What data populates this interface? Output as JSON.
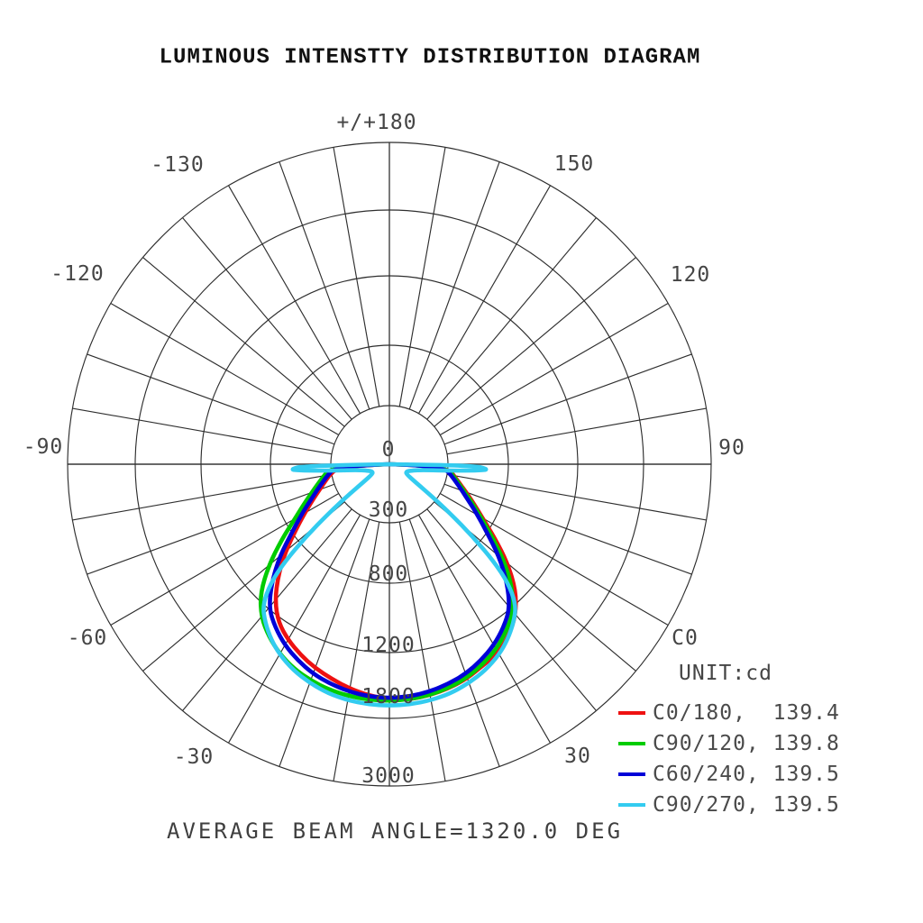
{
  "title": "LUMINOUS INTENSTTY DISTRIBUTION DIAGRAM",
  "footer": "AVERAGE BEAM ANGLE=1320.0 DEG",
  "legend": {
    "unit": "UNIT:cd",
    "entries": [
      {
        "label": "C0/180,  139.4",
        "color": "#ee1111"
      },
      {
        "label": "C90/120, 139.8",
        "color": "#00cc00"
      },
      {
        "label": "C60/240, 139.5",
        "color": "#0000d8"
      },
      {
        "label": "C90/270, 139.5",
        "color": "#33ccf0"
      }
    ]
  },
  "chart_data": {
    "type": "line",
    "subtype": "polar-intensity-distribution",
    "units": "cd",
    "grid": true,
    "r_axis": {
      "tick_values": [
        0,
        300,
        800,
        1200,
        1800,
        3000
      ],
      "tick_labels": [
        "0",
        "300",
        "800",
        "1200",
        "1800",
        "3000"
      ]
    },
    "theta_axis": {
      "spoke_step_deg": 10,
      "labels": [
        {
          "text": "+/+180",
          "angle_deg": 180
        },
        {
          "text": "150",
          "angle_deg": 150
        },
        {
          "text": "120",
          "angle_deg": 120
        },
        {
          "text": "90",
          "angle_deg": 90
        },
        {
          "text": "C0",
          "angle_deg": 60
        },
        {
          "text": "30",
          "angle_deg": 30
        },
        {
          "text": "-30",
          "angle_deg": -30
        },
        {
          "text": "-60",
          "angle_deg": -60
        },
        {
          "text": "-90",
          "angle_deg": -90
        },
        {
          "text": "-120",
          "angle_deg": -120
        },
        {
          "text": "-130",
          "angle_deg": -150
        }
      ]
    },
    "series": [
      {
        "name": "C0/180",
        "average_beam_angle": 139.4,
        "color": "#ee1111",
        "points": [
          [
            -90,
            0
          ],
          [
            -88,
            140
          ],
          [
            -85,
            272
          ],
          [
            -80,
            315
          ],
          [
            -75,
            366
          ],
          [
            -70,
            430
          ],
          [
            -65,
            515
          ],
          [
            -60,
            625
          ],
          [
            -55,
            760
          ],
          [
            -50,
            895
          ],
          [
            -45,
            1020
          ],
          [
            -40,
            1140
          ],
          [
            -35,
            1245
          ],
          [
            -30,
            1330
          ],
          [
            -25,
            1400
          ],
          [
            -20,
            1460
          ],
          [
            -15,
            1510
          ],
          [
            -10,
            1560
          ],
          [
            -5,
            1600
          ],
          [
            0,
            1625
          ],
          [
            5,
            1635
          ],
          [
            10,
            1620
          ],
          [
            15,
            1595
          ],
          [
            20,
            1560
          ],
          [
            25,
            1505
          ],
          [
            30,
            1470
          ],
          [
            35,
            1385
          ],
          [
            40,
            1275
          ],
          [
            45,
            1145
          ],
          [
            50,
            1005
          ],
          [
            55,
            855
          ],
          [
            60,
            705
          ],
          [
            65,
            585
          ],
          [
            70,
            490
          ],
          [
            75,
            415
          ],
          [
            80,
            357
          ],
          [
            85,
            310
          ],
          [
            88,
            163
          ],
          [
            90,
            0
          ]
        ]
      },
      {
        "name": "C90/120",
        "average_beam_angle": 139.8,
        "color": "#00cc00",
        "points": [
          [
            -90,
            0
          ],
          [
            -88,
            166
          ],
          [
            -85,
            316
          ],
          [
            -80,
            364
          ],
          [
            -75,
            423
          ],
          [
            -70,
            498
          ],
          [
            -65,
            594
          ],
          [
            -60,
            719
          ],
          [
            -55,
            872
          ],
          [
            -50,
            1022
          ],
          [
            -45,
            1166
          ],
          [
            -40,
            1300
          ],
          [
            -35,
            1400
          ],
          [
            -30,
            1480
          ],
          [
            -25,
            1540
          ],
          [
            -20,
            1580
          ],
          [
            -15,
            1610
          ],
          [
            -10,
            1628
          ],
          [
            -5,
            1638
          ],
          [
            0,
            1640
          ],
          [
            5,
            1635
          ],
          [
            10,
            1618
          ],
          [
            15,
            1590
          ],
          [
            20,
            1552
          ],
          [
            25,
            1495
          ],
          [
            30,
            1430
          ],
          [
            35,
            1340
          ],
          [
            40,
            1240
          ],
          [
            45,
            1115
          ],
          [
            50,
            975
          ],
          [
            55,
            832
          ],
          [
            60,
            688
          ],
          [
            65,
            568
          ],
          [
            70,
            476
          ],
          [
            75,
            404
          ],
          [
            80,
            348
          ],
          [
            85,
            301
          ],
          [
            88,
            159
          ],
          [
            90,
            0
          ]
        ]
      },
      {
        "name": "C60/240",
        "average_beam_angle": 139.5,
        "color": "#0000d8",
        "points": [
          [
            -90,
            0
          ],
          [
            -88,
            150
          ],
          [
            -85,
            288
          ],
          [
            -80,
            332
          ],
          [
            -75,
            386
          ],
          [
            -70,
            455
          ],
          [
            -65,
            542
          ],
          [
            -60,
            658
          ],
          [
            -55,
            800
          ],
          [
            -50,
            938
          ],
          [
            -45,
            1072
          ],
          [
            -40,
            1195
          ],
          [
            -35,
            1298
          ],
          [
            -30,
            1388
          ],
          [
            -25,
            1456
          ],
          [
            -20,
            1516
          ],
          [
            -15,
            1556
          ],
          [
            -10,
            1588
          ],
          [
            -5,
            1608
          ],
          [
            0,
            1616
          ],
          [
            5,
            1608
          ],
          [
            10,
            1588
          ],
          [
            15,
            1556
          ],
          [
            20,
            1516
          ],
          [
            25,
            1456
          ],
          [
            30,
            1388
          ],
          [
            35,
            1298
          ],
          [
            40,
            1195
          ],
          [
            45,
            1072
          ],
          [
            50,
            938
          ],
          [
            55,
            800
          ],
          [
            60,
            658
          ],
          [
            65,
            542
          ],
          [
            70,
            455
          ],
          [
            75,
            386
          ],
          [
            80,
            332
          ],
          [
            85,
            288
          ],
          [
            88,
            150
          ],
          [
            90,
            0
          ]
        ]
      },
      {
        "name": "C90/270",
        "average_beam_angle": 139.5,
        "color": "#33ccf0",
        "points": [
          [
            -90,
            0
          ],
          [
            -89,
            520
          ],
          [
            -87,
            640
          ],
          [
            -86,
            560
          ],
          [
            -84,
            330
          ],
          [
            -80,
            170
          ],
          [
            -75,
            125
          ],
          [
            -70,
            102
          ],
          [
            -65,
            95
          ],
          [
            -60,
            100
          ],
          [
            -56,
            150
          ],
          [
            -53,
            270
          ],
          [
            -51,
            460
          ],
          [
            -49,
            730
          ],
          [
            -47,
            940
          ],
          [
            -45,
            1080
          ],
          [
            -42,
            1210
          ],
          [
            -38,
            1320
          ],
          [
            -34,
            1410
          ],
          [
            -30,
            1485
          ],
          [
            -25,
            1555
          ],
          [
            -20,
            1605
          ],
          [
            -15,
            1645
          ],
          [
            -10,
            1668
          ],
          [
            -5,
            1680
          ],
          [
            0,
            1685
          ],
          [
            5,
            1680
          ],
          [
            10,
            1668
          ],
          [
            15,
            1645
          ],
          [
            20,
            1605
          ],
          [
            25,
            1555
          ],
          [
            30,
            1485
          ],
          [
            34,
            1410
          ],
          [
            38,
            1320
          ],
          [
            42,
            1210
          ],
          [
            45,
            1080
          ],
          [
            47,
            940
          ],
          [
            49,
            730
          ],
          [
            51,
            460
          ],
          [
            53,
            270
          ],
          [
            56,
            150
          ],
          [
            60,
            100
          ],
          [
            65,
            95
          ],
          [
            70,
            102
          ],
          [
            75,
            125
          ],
          [
            80,
            170
          ],
          [
            84,
            330
          ],
          [
            86,
            560
          ],
          [
            87,
            640
          ],
          [
            89,
            520
          ],
          [
            90,
            0
          ]
        ]
      }
    ]
  }
}
